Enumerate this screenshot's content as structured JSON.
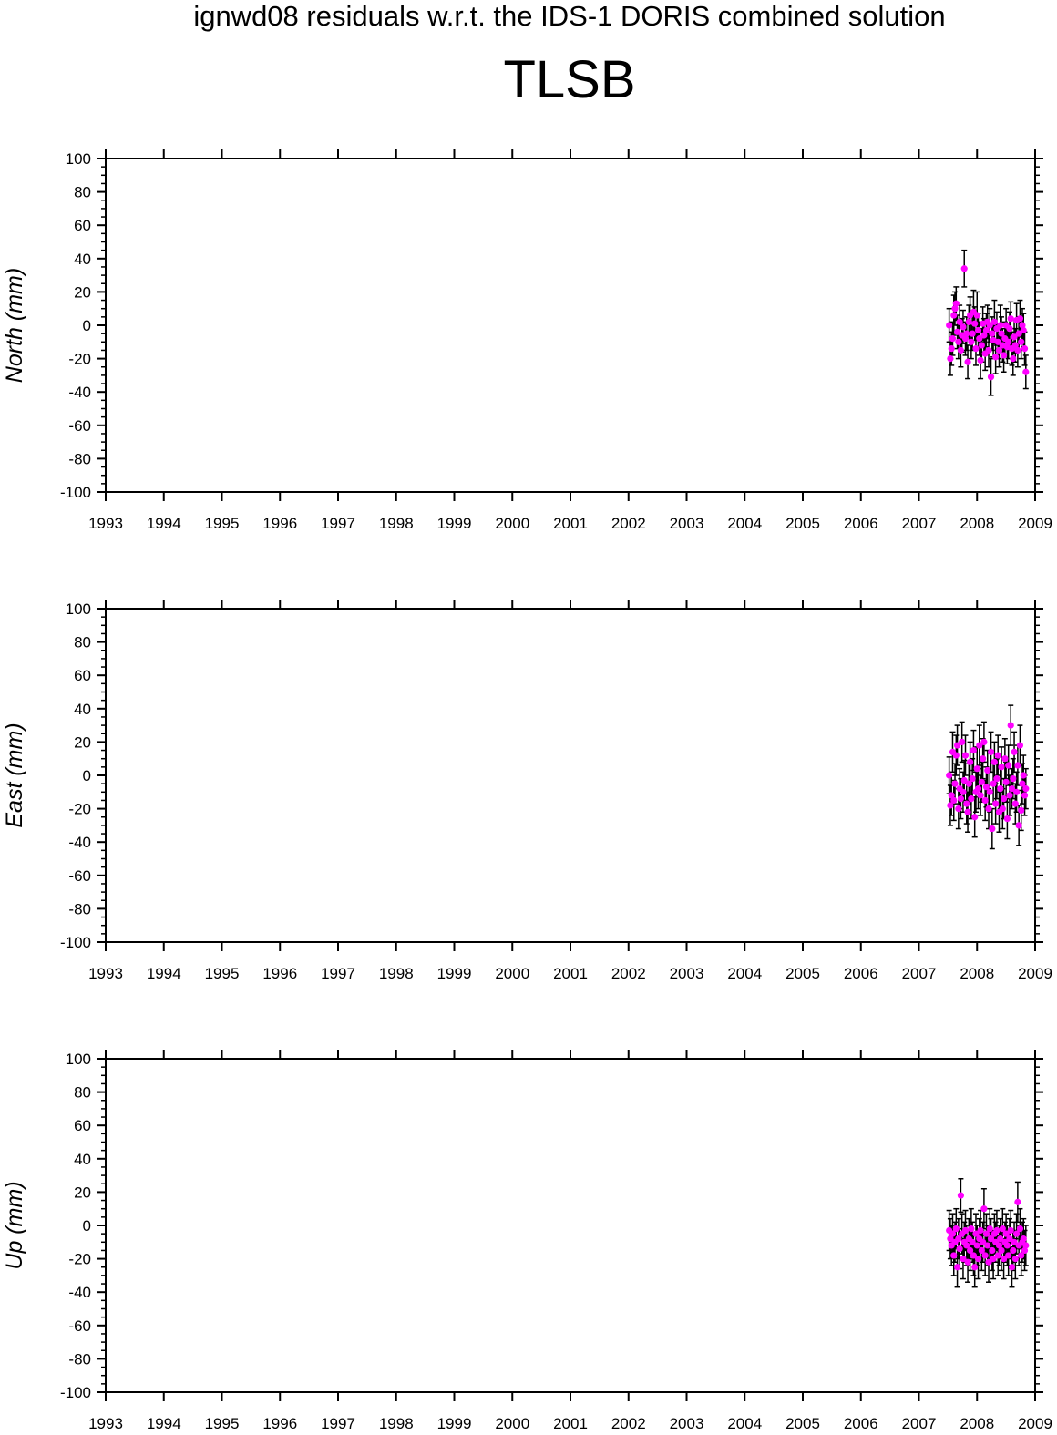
{
  "figure": {
    "suptitle": "ignwd08 residuals w.r.t. the IDS-1 DORIS combined solution",
    "station": "TLSB"
  },
  "chart_data": [
    {
      "type": "scatter",
      "ylabel": "North (mm)",
      "xlabel": "",
      "xlim": [
        1993,
        2009
      ],
      "ylim": [
        -100,
        100
      ],
      "x_ticks": [
        "1993",
        "1994",
        "1995",
        "1996",
        "1997",
        "1998",
        "1999",
        "2000",
        "2001",
        "2002",
        "2003",
        "2004",
        "2005",
        "2006",
        "2007",
        "2008",
        "2009"
      ],
      "y_ticks": [
        "100",
        "80",
        "60",
        "40",
        "20",
        "0",
        "-20",
        "-40",
        "-60",
        "-80",
        "-100"
      ],
      "grid": false,
      "marker_color": "#ff00ff",
      "errorbar_color": "#000000",
      "series": [
        {
          "x": [
            2007.52,
            2007.54,
            2007.56,
            2007.58,
            2007.6,
            2007.62,
            2007.64,
            2007.66,
            2007.68,
            2007.7,
            2007.72,
            2007.74,
            2007.76,
            2007.78,
            2007.8,
            2007.82,
            2007.84,
            2007.86,
            2007.88,
            2007.9,
            2007.92,
            2007.94,
            2007.96,
            2007.98,
            2008.0,
            2008.02,
            2008.04,
            2008.06,
            2008.08,
            2008.1,
            2008.12,
            2008.14,
            2008.16,
            2008.18,
            2008.2,
            2008.22,
            2008.24,
            2008.26,
            2008.28,
            2008.3,
            2008.32,
            2008.34,
            2008.36,
            2008.38,
            2008.4,
            2008.42,
            2008.44,
            2008.46,
            2008.48,
            2008.5,
            2008.52,
            2008.54,
            2008.56,
            2008.58,
            2008.6,
            2008.62,
            2008.64,
            2008.66,
            2008.68,
            2008.7,
            2008.72,
            2008.74,
            2008.76,
            2008.78,
            2008.8,
            2008.82,
            2008.84
          ],
          "y": [
            0,
            -20,
            -14,
            -8,
            6,
            10,
            13,
            -4,
            -10,
            2,
            -15,
            -6,
            -1,
            34,
            -8,
            -5,
            -22,
            2,
            6,
            -10,
            -5,
            8,
            1,
            -14,
            6,
            -3,
            -8,
            -21,
            -12,
            1,
            -6,
            -17,
            -3,
            2,
            -15,
            0,
            -31,
            -5,
            -9,
            2,
            -19,
            -2,
            -10,
            -15,
            0,
            -5,
            -12,
            -18,
            -8,
            0,
            -13,
            -10,
            -2,
            4,
            -14,
            -20,
            -7,
            -12,
            3,
            -15,
            -5,
            4,
            -10,
            0,
            -3,
            -14,
            -28
          ],
          "err": [
            10,
            10,
            10,
            10,
            12,
            10,
            10,
            10,
            10,
            10,
            10,
            10,
            10,
            11,
            10,
            10,
            10,
            10,
            11,
            10,
            10,
            13,
            10,
            10,
            14,
            10,
            10,
            11,
            10,
            10,
            10,
            10,
            10,
            10,
            10,
            10,
            11,
            10,
            10,
            13,
            10,
            10,
            10,
            10,
            12,
            10,
            10,
            10,
            10,
            10,
            10,
            10,
            10,
            10,
            10,
            10,
            10,
            10,
            10,
            10,
            10,
            11,
            10,
            10,
            10,
            10,
            10
          ]
        }
      ]
    },
    {
      "type": "scatter",
      "ylabel": "East (mm)",
      "xlabel": "",
      "xlim": [
        1993,
        2009
      ],
      "ylim": [
        -100,
        100
      ],
      "x_ticks": [
        "1993",
        "1994",
        "1995",
        "1996",
        "1997",
        "1998",
        "1999",
        "2000",
        "2001",
        "2002",
        "2003",
        "2004",
        "2005",
        "2006",
        "2007",
        "2008",
        "2009"
      ],
      "y_ticks": [
        "100",
        "80",
        "60",
        "40",
        "20",
        "0",
        "-20",
        "-40",
        "-60",
        "-80",
        "-100"
      ],
      "grid": false,
      "marker_color": "#ff00ff",
      "errorbar_color": "#000000",
      "series": [
        {
          "x": [
            2007.52,
            2007.54,
            2007.56,
            2007.58,
            2007.6,
            2007.62,
            2007.64,
            2007.66,
            2007.68,
            2007.7,
            2007.72,
            2007.74,
            2007.76,
            2007.78,
            2007.8,
            2007.82,
            2007.84,
            2007.86,
            2007.88,
            2007.9,
            2007.92,
            2007.94,
            2007.96,
            2007.98,
            2008.0,
            2008.02,
            2008.04,
            2008.06,
            2008.08,
            2008.1,
            2008.12,
            2008.14,
            2008.16,
            2008.18,
            2008.2,
            2008.22,
            2008.24,
            2008.26,
            2008.28,
            2008.3,
            2008.32,
            2008.34,
            2008.36,
            2008.38,
            2008.4,
            2008.42,
            2008.44,
            2008.46,
            2008.48,
            2008.5,
            2008.52,
            2008.54,
            2008.56,
            2008.58,
            2008.6,
            2008.62,
            2008.64,
            2008.66,
            2008.68,
            2008.7,
            2008.72,
            2008.74,
            2008.76,
            2008.78,
            2008.8,
            2008.82,
            2008.84
          ],
          "y": [
            0,
            -18,
            -12,
            14,
            -15,
            -5,
            12,
            18,
            -20,
            -8,
            -14,
            20,
            -10,
            -3,
            12,
            -17,
            -22,
            -5,
            8,
            -14,
            -2,
            15,
            -25,
            -10,
            4,
            -8,
            18,
            -12,
            -4,
            10,
            20,
            -15,
            -7,
            3,
            -20,
            -10,
            14,
            -32,
            -5,
            8,
            -17,
            -2,
            12,
            -22,
            -8,
            5,
            -20,
            -14,
            10,
            -4,
            -26,
            6,
            -12,
            30,
            -8,
            -2,
            14,
            -17,
            -10,
            6,
            -30,
            18,
            -21,
            -5,
            0,
            -12,
            -8
          ],
          "err": [
            11,
            12,
            12,
            12,
            12,
            12,
            12,
            12,
            12,
            12,
            12,
            12,
            12,
            12,
            12,
            12,
            12,
            12,
            12,
            12,
            12,
            12,
            12,
            12,
            13,
            12,
            12,
            12,
            12,
            12,
            12,
            12,
            12,
            12,
            12,
            12,
            12,
            12,
            12,
            12,
            12,
            12,
            12,
            12,
            12,
            12,
            12,
            12,
            12,
            12,
            12,
            12,
            12,
            12,
            12,
            12,
            12,
            12,
            12,
            12,
            12,
            12,
            12,
            12,
            12,
            12,
            12
          ]
        }
      ]
    },
    {
      "type": "scatter",
      "ylabel": "Up (mm)",
      "xlabel": "",
      "xlim": [
        1993,
        2009
      ],
      "ylim": [
        -100,
        100
      ],
      "x_ticks": [
        "1993",
        "1994",
        "1995",
        "1996",
        "1997",
        "1998",
        "1999",
        "2000",
        "2001",
        "2002",
        "2003",
        "2004",
        "2005",
        "2006",
        "2007",
        "2008",
        "2009"
      ],
      "y_ticks": [
        "100",
        "80",
        "60",
        "40",
        "20",
        "0",
        "-20",
        "-40",
        "-60",
        "-80",
        "-100"
      ],
      "grid": false,
      "marker_color": "#ff00ff",
      "errorbar_color": "#000000",
      "series": [
        {
          "x": [
            2007.52,
            2007.54,
            2007.56,
            2007.58,
            2007.6,
            2007.62,
            2007.64,
            2007.66,
            2007.68,
            2007.7,
            2007.72,
            2007.74,
            2007.76,
            2007.78,
            2007.8,
            2007.82,
            2007.84,
            2007.86,
            2007.88,
            2007.9,
            2007.92,
            2007.94,
            2007.96,
            2007.98,
            2008.0,
            2008.02,
            2008.04,
            2008.06,
            2008.08,
            2008.1,
            2008.12,
            2008.14,
            2008.16,
            2008.18,
            2008.2,
            2008.22,
            2008.24,
            2008.26,
            2008.28,
            2008.3,
            2008.32,
            2008.34,
            2008.36,
            2008.38,
            2008.4,
            2008.42,
            2008.44,
            2008.46,
            2008.48,
            2008.5,
            2008.52,
            2008.54,
            2008.56,
            2008.58,
            2008.6,
            2008.62,
            2008.64,
            2008.66,
            2008.68,
            2008.7,
            2008.72,
            2008.74,
            2008.76,
            2008.78,
            2008.8,
            2008.82,
            2008.84
          ],
          "y": [
            -3,
            -8,
            -12,
            -5,
            -18,
            -10,
            -2,
            -25,
            -8,
            -14,
            18,
            -5,
            -20,
            -10,
            -3,
            -12,
            -22,
            -8,
            -15,
            -2,
            -10,
            -18,
            -25,
            -5,
            -12,
            -20,
            -8,
            -3,
            -15,
            -10,
            10,
            -18,
            -5,
            -12,
            -22,
            -2,
            -8,
            -15,
            -20,
            -5,
            -10,
            -3,
            -18,
            -12,
            -8,
            -15,
            -2,
            -20,
            -10,
            -5,
            -12,
            -18,
            -8,
            -3,
            -25,
            -15,
            -10,
            -20,
            -5,
            14,
            -12,
            -2,
            -18,
            -10,
            -8,
            -15,
            -12
          ],
          "err": [
            12,
            12,
            12,
            12,
            12,
            12,
            12,
            12,
            12,
            12,
            10,
            12,
            12,
            12,
            12,
            12,
            12,
            12,
            12,
            12,
            12,
            12,
            12,
            12,
            12,
            12,
            12,
            12,
            12,
            12,
            12,
            12,
            12,
            12,
            12,
            12,
            12,
            12,
            12,
            12,
            12,
            12,
            12,
            12,
            12,
            12,
            12,
            12,
            12,
            12,
            12,
            12,
            12,
            12,
            12,
            12,
            12,
            12,
            12,
            12,
            12,
            12,
            12,
            12,
            12,
            12,
            12
          ]
        }
      ]
    }
  ]
}
